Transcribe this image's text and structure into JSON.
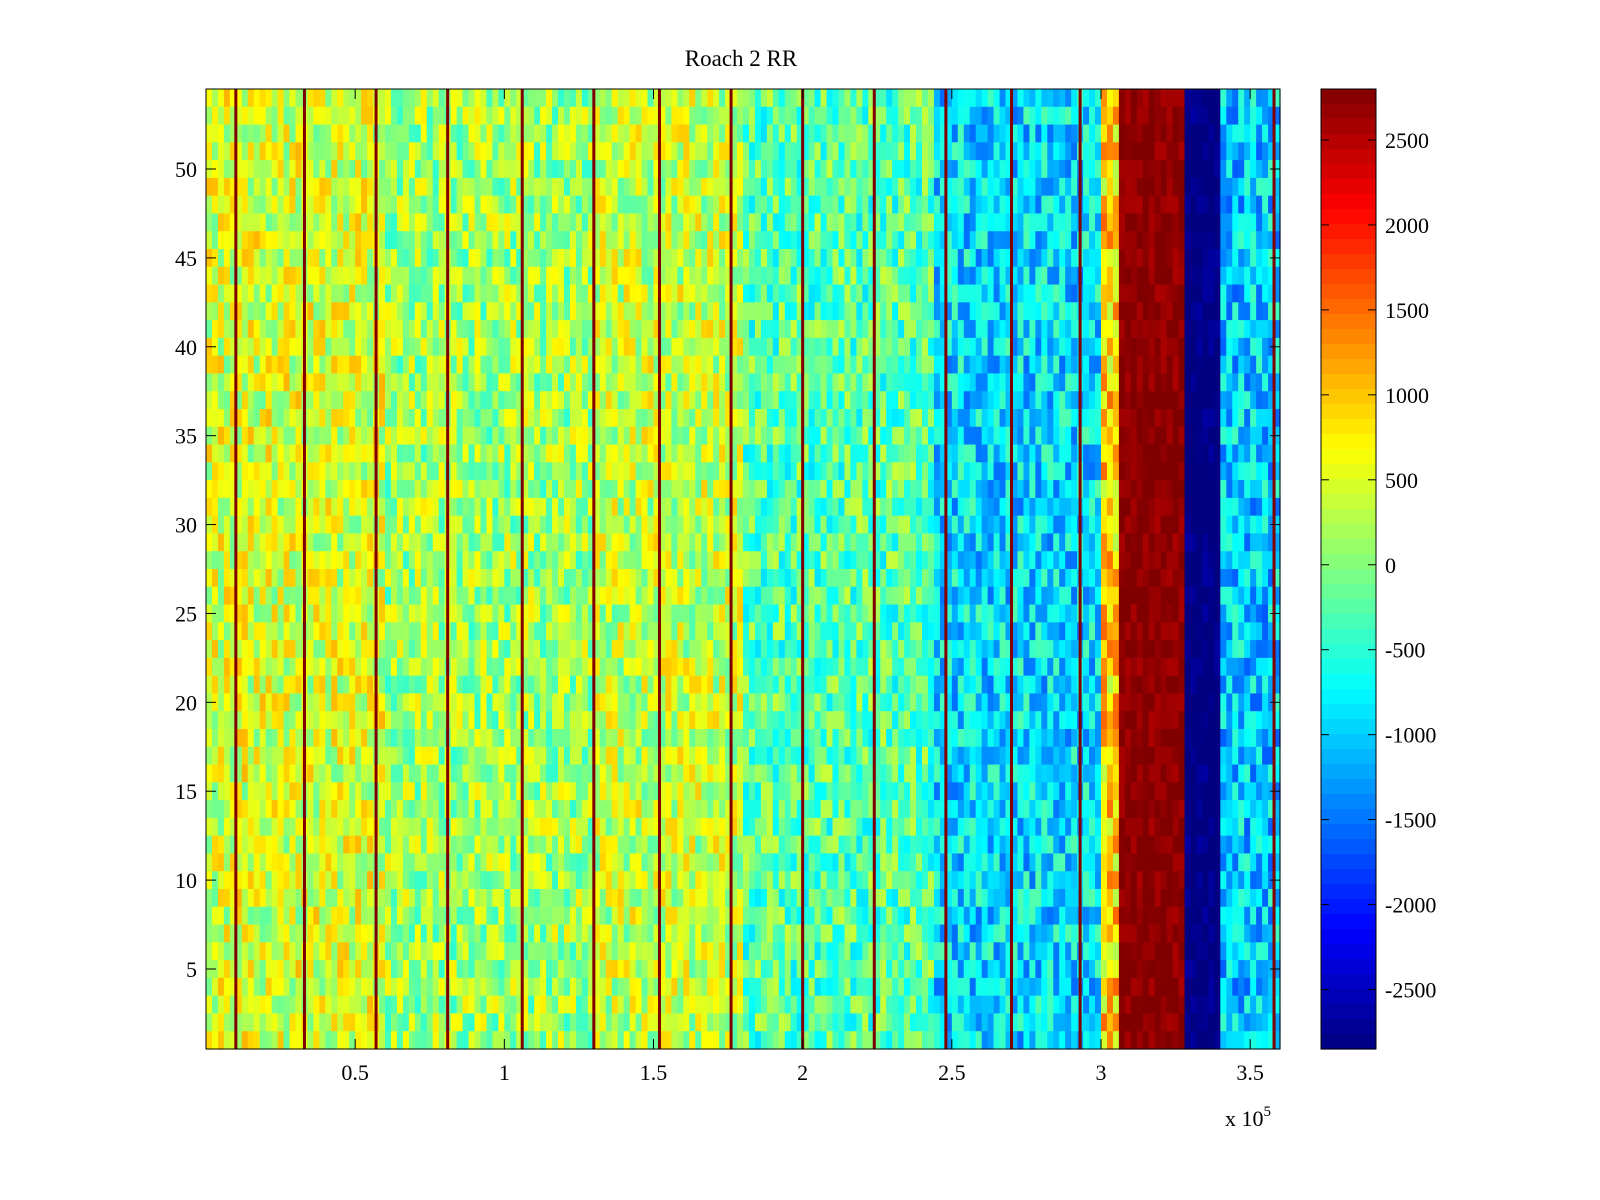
{
  "chart_data": {
    "type": "heatmap",
    "title": "Roach 2 RR",
    "xlabel": "",
    "ylabel": "",
    "x_exponent_label": "x 10",
    "x_exponent_power": "5",
    "x_range": [
      0,
      3.6
    ],
    "y_range": [
      0.5,
      54.5
    ],
    "rows": 54,
    "x_ticks": [
      0.5,
      1,
      1.5,
      2,
      2.5,
      3,
      3.5
    ],
    "x_tick_labels": [
      "0.5",
      "1",
      "1.5",
      "2",
      "2.5",
      "3",
      "3.5"
    ],
    "y_ticks": [
      5,
      10,
      15,
      20,
      25,
      30,
      35,
      40,
      45,
      50
    ],
    "y_tick_labels": [
      "5",
      "10",
      "15",
      "20",
      "25",
      "30",
      "35",
      "40",
      "45",
      "50"
    ],
    "colormap": "jet",
    "color_range": [
      -2850,
      2800
    ],
    "colorbar_ticks": [
      2500,
      2000,
      1500,
      1000,
      500,
      0,
      -500,
      -1000,
      -1500,
      -2000,
      -2500
    ],
    "colorbar_tick_labels": [
      "2500",
      "2000",
      "1500",
      "1000",
      "500",
      "0",
      "-500",
      "-1000",
      "-1500",
      "-2000",
      "-2500"
    ],
    "vertical_spike_positions": [
      0.1,
      0.33,
      0.57,
      0.81,
      1.06,
      1.3,
      1.52,
      1.76,
      2.0,
      2.24,
      2.48,
      2.7,
      2.93,
      3.58
    ],
    "spike_value": 2800,
    "regions": [
      {
        "x_start": 0.0,
        "x_end": 0.6,
        "level": 450
      },
      {
        "x_start": 0.6,
        "x_end": 1.3,
        "level": 150
      },
      {
        "x_start": 1.3,
        "x_end": 1.8,
        "level": 350
      },
      {
        "x_start": 1.8,
        "x_end": 2.45,
        "level": -250
      },
      {
        "x_start": 2.45,
        "x_end": 3.0,
        "level": -900
      },
      {
        "x_start": 3.0,
        "x_end": 3.06,
        "level": 900
      },
      {
        "x_start": 3.06,
        "x_end": 3.29,
        "level": 2750
      },
      {
        "x_start": 3.29,
        "x_end": 3.4,
        "level": -2850
      },
      {
        "x_start": 3.4,
        "x_end": 3.6,
        "level": -1000
      }
    ]
  }
}
